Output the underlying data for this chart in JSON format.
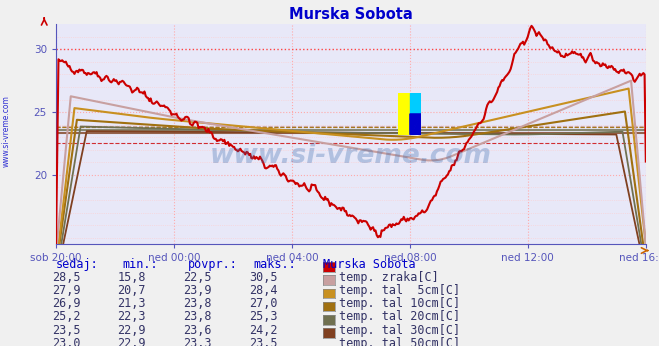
{
  "title": "Murska Sobota",
  "title_color": "#0000cc",
  "bg_color": "#f0f0f0",
  "plot_bg_color": "#e8e8f8",
  "watermark_text": "www.si-vreme.com",
  "watermark_color": "#3366aa",
  "watermark_alpha": 0.3,
  "xlim": [
    0,
    480
  ],
  "ylim": [
    14.5,
    32
  ],
  "xtick_positions": [
    0,
    96,
    192,
    288,
    384,
    480
  ],
  "xtick_labels": [
    "sob 20:00",
    "ned 00:00",
    "ned 04:00",
    "ned 08:00",
    "ned 12:00",
    "ned 16:00"
  ],
  "ytick_positions": [
    20,
    25,
    30
  ],
  "ytick_labels": [
    "20",
    "25",
    "30"
  ],
  "series_colors": {
    "zrak": "#cc0000",
    "tal5": "#c8a0a0",
    "tal10": "#c89020",
    "tal20": "#a07010",
    "tal30": "#707050",
    "tal50": "#804020"
  },
  "avg_values": {
    "zrak": 22.5,
    "tal5": 23.9,
    "tal10": 23.8,
    "tal20": 23.8,
    "tal30": 23.6,
    "tal50": 23.3
  },
  "table_rows": [
    {
      "sedaj": "28,5",
      "min": "15,8",
      "povpr": "22,5",
      "maks": "30,5",
      "series": "zrak",
      "label": "temp. zraka[C]"
    },
    {
      "sedaj": "27,9",
      "min": "20,7",
      "povpr": "23,9",
      "maks": "28,4",
      "series": "tal5",
      "label": "temp. tal  5cm[C]"
    },
    {
      "sedaj": "26,9",
      "min": "21,3",
      "povpr": "23,8",
      "maks": "27,0",
      "series": "tal10",
      "label": "temp. tal 10cm[C]"
    },
    {
      "sedaj": "25,2",
      "min": "22,3",
      "povpr": "23,8",
      "maks": "25,3",
      "series": "tal20",
      "label": "temp. tal 20cm[C]"
    },
    {
      "sedaj": "23,5",
      "min": "22,9",
      "povpr": "23,6",
      "maks": "24,2",
      "series": "tal30",
      "label": "temp. tal 30cm[C]"
    },
    {
      "sedaj": "23,0",
      "min": "22,9",
      "povpr": "23,3",
      "maks": "23,5",
      "series": "tal50",
      "label": "temp. tal 50cm[C]"
    }
  ],
  "table_headers": [
    "sedaj:",
    "min.:",
    "povpr.:",
    "maks.:",
    "Murska Sobota"
  ],
  "header_color": "#0000cc",
  "value_color": "#333366",
  "sidebar_text": "www.si-vreme.com",
  "sidebar_color": "#0000cc"
}
